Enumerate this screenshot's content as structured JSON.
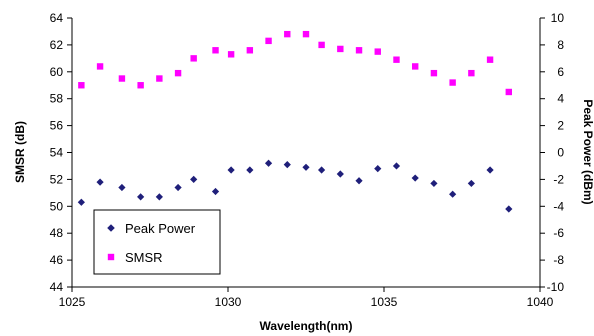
{
  "chart_data": {
    "type": "scatter",
    "title": "",
    "xlabel": "Wavelength(nm)",
    "ylabel_left": "SMSR (dB)",
    "ylabel_right": "Peak Power (dBm)",
    "xlim": [
      1025,
      1040
    ],
    "ylim_left": [
      44,
      64
    ],
    "ylim_right": [
      -10,
      10
    ],
    "x_ticks": [
      1025,
      1030,
      1035,
      1040
    ],
    "y_left_ticks": [
      44,
      46,
      48,
      50,
      52,
      54,
      56,
      58,
      60,
      62,
      64
    ],
    "y_right_ticks": [
      -10,
      -8,
      -6,
      -4,
      -2,
      0,
      2,
      4,
      6,
      8,
      10
    ],
    "grid": false,
    "legend_position": "bottom-left",
    "series": [
      {
        "name": "Peak Power",
        "axis": "right",
        "color": "#1f1f7a",
        "marker": "diamond",
        "x": [
          1025.3,
          1025.9,
          1026.6,
          1027.2,
          1027.8,
          1028.4,
          1028.9,
          1029.6,
          1030.1,
          1030.7,
          1031.3,
          1031.9,
          1032.5,
          1033.0,
          1033.6,
          1034.2,
          1034.8,
          1035.4,
          1036.0,
          1036.6,
          1037.2,
          1037.8,
          1038.4,
          1039.0
        ],
        "y": [
          -3.7,
          -2.2,
          -2.6,
          -3.3,
          -3.3,
          -2.6,
          -2.0,
          -2.9,
          -1.3,
          -1.3,
          -0.8,
          -0.9,
          -1.1,
          -1.3,
          -1.6,
          -2.1,
          -1.2,
          -1.0,
          -1.9,
          -2.3,
          -3.1,
          -2.3,
          -1.3,
          -4.2
        ]
      },
      {
        "name": "SMSR",
        "axis": "left",
        "color": "#ff00ff",
        "marker": "square",
        "x": [
          1025.3,
          1025.9,
          1026.6,
          1027.2,
          1027.8,
          1028.4,
          1028.9,
          1029.6,
          1030.1,
          1030.7,
          1031.3,
          1031.9,
          1032.5,
          1033.0,
          1033.6,
          1034.2,
          1034.8,
          1035.4,
          1036.0,
          1036.6,
          1037.2,
          1037.8,
          1038.4,
          1039.0
        ],
        "y": [
          59.0,
          60.4,
          59.5,
          59.0,
          59.5,
          59.9,
          61.0,
          61.6,
          61.3,
          61.6,
          62.3,
          62.8,
          62.8,
          62.0,
          61.7,
          61.6,
          61.5,
          60.9,
          60.4,
          59.9,
          59.2,
          59.9,
          60.9,
          58.5
        ]
      }
    ]
  }
}
